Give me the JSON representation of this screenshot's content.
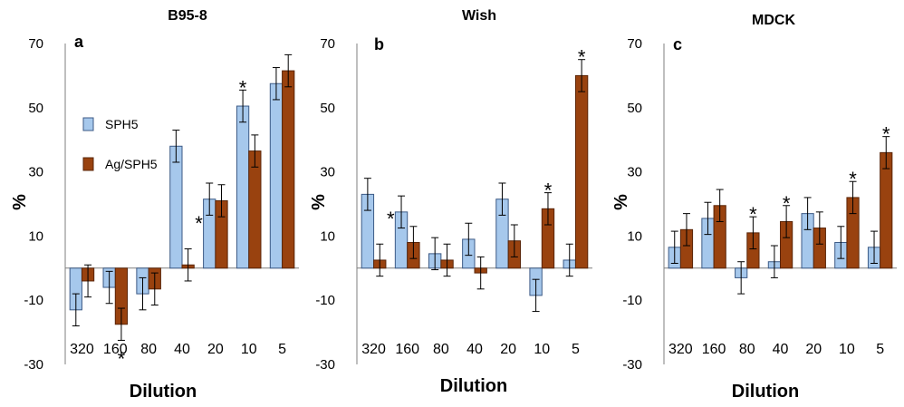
{
  "colors": {
    "SPH5": "#a6c8ec",
    "AgSPH5": "#99420f",
    "edge": "#3c5a86",
    "edge2": "#5a2508",
    "axis": "#7f7f7f"
  },
  "legend": {
    "items": [
      {
        "name": "SPH5",
        "color": "#a6c8ec"
      },
      {
        "name": "Ag/SPH5",
        "color": "#99420f"
      }
    ]
  },
  "chart_data": [
    {
      "type": "bar",
      "title": "B95-8",
      "panel_label": "a",
      "xlabel": "Dilution",
      "ylabel": "%",
      "ylim": [
        -30,
        70
      ],
      "yticks": [
        "70",
        "50",
        "30",
        "10",
        "-10",
        "-30"
      ],
      "categories": [
        "320",
        "160",
        "80",
        "40",
        "20",
        "10",
        "5"
      ],
      "series": [
        {
          "name": "SPH5",
          "values": [
            -13,
            -6,
            -8,
            38,
            21.5,
            50.5,
            57.5
          ],
          "errors": [
            5,
            5,
            5,
            5,
            5,
            5,
            5
          ]
        },
        {
          "name": "Ag/SPH5",
          "values": [
            -4,
            -17.5,
            -6.5,
            1,
            21,
            36.5,
            61.5
          ],
          "errors": [
            5,
            5,
            5,
            5,
            5,
            5,
            5
          ]
        }
      ],
      "annotations": [
        {
          "text": "*",
          "category": "40",
          "series": "Ag/SPH5"
        },
        {
          "text": "*",
          "category": "10",
          "series": "SPH5"
        },
        {
          "text": "*",
          "category": "160",
          "series": "Ag/SPH5"
        }
      ]
    },
    {
      "type": "bar",
      "title": "Wish",
      "panel_label": "b",
      "xlabel": "Dilution",
      "ylabel": "%",
      "ylim": [
        -30,
        70
      ],
      "yticks": [
        "70",
        "50",
        "30",
        "10",
        "-10",
        "-30"
      ],
      "categories": [
        "320",
        "160",
        "80",
        "40",
        "20",
        "10",
        "5"
      ],
      "series": [
        {
          "name": "SPH5",
          "values": [
            23,
            17.5,
            4.5,
            9,
            21.5,
            -8.5,
            2.5
          ],
          "errors": [
            5,
            5,
            5,
            5,
            5,
            5,
            5
          ]
        },
        {
          "name": "Ag/SPH5",
          "values": [
            2.5,
            8,
            2.5,
            -1.5,
            8.5,
            18.5,
            60
          ],
          "errors": [
            5,
            5,
            5,
            5,
            5,
            5,
            5
          ]
        }
      ],
      "annotations": [
        {
          "text": "*",
          "category": "320",
          "series": "Ag/SPH5"
        },
        {
          "text": "*",
          "category": "10",
          "series": "Ag/SPH5"
        },
        {
          "text": "*",
          "category": "5",
          "series": "Ag/SPH5"
        }
      ]
    },
    {
      "type": "bar",
      "title": "MDCK",
      "panel_label": "c",
      "xlabel": "Dilution",
      "ylabel": "%",
      "ylim": [
        -30,
        70
      ],
      "yticks": [
        "70",
        "50",
        "30",
        "10",
        "-10",
        "-30"
      ],
      "categories": [
        "320",
        "160",
        "80",
        "40",
        "20",
        "10",
        "5"
      ],
      "series": [
        {
          "name": "SPH5",
          "values": [
            6.5,
            15.5,
            -3,
            2,
            17,
            8,
            6.5
          ],
          "errors": [
            5,
            5,
            5,
            5,
            5,
            5,
            5
          ]
        },
        {
          "name": "Ag/SPH5",
          "values": [
            12,
            19.5,
            11,
            14.5,
            12.5,
            22,
            36
          ],
          "errors": [
            5,
            5,
            5,
            5,
            5,
            5,
            5
          ]
        }
      ],
      "annotations": [
        {
          "text": "*",
          "category": "80",
          "series": "Ag/SPH5"
        },
        {
          "text": "*",
          "category": "40",
          "series": "Ag/SPH5"
        },
        {
          "text": "*",
          "category": "10",
          "series": "Ag/SPH5"
        },
        {
          "text": "*",
          "category": "5",
          "series": "Ag/SPH5"
        }
      ]
    }
  ]
}
